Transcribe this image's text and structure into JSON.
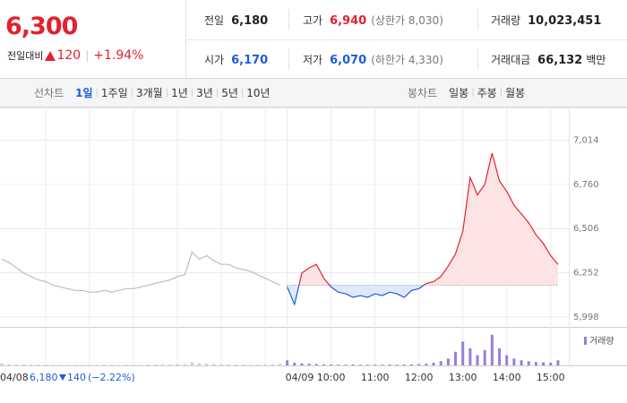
{
  "header": {
    "price": "6,300",
    "change_label": "전일대비",
    "change": "120",
    "change_pct": "+1.94%"
  },
  "stats": [
    [
      {
        "label": "전일",
        "value": "6,180"
      },
      {
        "label": "고가",
        "value": "6,940",
        "color": "#e0232e",
        "extra": "(상한가 8,030)"
      },
      {
        "label": "거래량",
        "value": "10,023,451"
      }
    ],
    [
      {
        "label": "시가",
        "value": "6,170",
        "color": "#1e5dd6"
      },
      {
        "label": "저가",
        "value": "6,070",
        "color": "#1e5dd6",
        "extra": "(하한가 4,330)"
      },
      {
        "label": "거래대금",
        "value": "66,132",
        "unit": "백만"
      }
    ]
  ],
  "tabs": {
    "line_label": "선차트",
    "line_periods": [
      "1일",
      "1주일",
      "3개월",
      "1년",
      "3년",
      "5년",
      "10년"
    ],
    "line_active": 0,
    "candle_label": "봉차트",
    "candle_periods": [
      "일봉",
      "주봉",
      "월봉"
    ]
  },
  "chart_data": {
    "type": "line",
    "categories": [
      "04/08",
      null,
      null,
      null,
      null,
      null,
      null,
      null,
      null,
      null,
      null,
      null,
      null,
      null,
      null,
      null,
      null,
      null,
      null,
      null,
      null,
      null,
      null,
      null,
      null,
      null,
      null,
      null,
      null,
      null,
      null,
      null,
      null,
      null,
      null,
      null,
      null,
      null,
      null,
      "04/09",
      null,
      null,
      null,
      null,
      null,
      "10:00",
      null,
      null,
      null,
      null,
      null,
      "11:00",
      null,
      null,
      null,
      null,
      null,
      "12:00",
      null,
      null,
      null,
      null,
      null,
      "13:00",
      null,
      null,
      null,
      null,
      null,
      "14:00",
      null,
      null,
      null,
      null,
      null,
      "15:00",
      null
    ],
    "series": [
      {
        "color": "#bdbdbd",
        "values": [
          6330,
          6310,
          6280,
          6250,
          6230,
          6210,
          6200,
          6180,
          6170,
          6160,
          6150,
          6150,
          6140,
          6140,
          6150,
          6140,
          6150,
          6160,
          6160,
          6170,
          6180,
          6190,
          6200,
          6210,
          6230,
          6240,
          6370,
          6330,
          6350,
          6320,
          6300,
          6300,
          6280,
          6270,
          6260,
          6240,
          6220,
          6200,
          6180,
          null,
          null,
          null,
          null,
          null,
          null,
          null,
          null,
          null,
          null,
          null,
          null,
          null,
          null,
          null,
          null,
          null,
          null,
          null,
          null,
          null,
          null,
          null,
          null,
          null,
          null,
          null,
          null,
          null,
          null,
          null,
          null,
          null,
          null,
          null,
          null,
          null,
          null
        ]
      },
      {
        "color": "#e0232e",
        "color_below": "#1e5dd6",
        "fill": "#fde4e4",
        "fill_below": "#dfe9fb",
        "values": [
          null,
          null,
          null,
          null,
          null,
          null,
          null,
          null,
          null,
          null,
          null,
          null,
          null,
          null,
          null,
          null,
          null,
          null,
          null,
          null,
          null,
          null,
          null,
          null,
          null,
          null,
          null,
          null,
          null,
          null,
          null,
          null,
          null,
          null,
          null,
          null,
          null,
          null,
          null,
          6170,
          6070,
          6250,
          6280,
          6300,
          6220,
          6170,
          6140,
          6130,
          6110,
          6120,
          6110,
          6130,
          6120,
          6140,
          6130,
          6110,
          6150,
          6160,
          6190,
          6200,
          6230,
          6290,
          6360,
          6490,
          6800,
          6700,
          6760,
          6940,
          6780,
          6720,
          6640,
          6590,
          6540,
          6470,
          6420,
          6350,
          6300
        ]
      }
    ],
    "baseline": 6180,
    "ylim": [
      5940,
      7100
    ],
    "yticks": [
      {
        "value": 5998,
        "label": "5,998"
      },
      {
        "value": 6252,
        "label": "6,252"
      },
      {
        "value": 6506,
        "label": "6,506"
      },
      {
        "value": 6760,
        "label": "6,760"
      },
      {
        "value": 7014,
        "label": "7,014"
      }
    ],
    "grid": true,
    "volume": {
      "name": "거래량",
      "color": "#9a7ed6",
      "prev_color": "#cfcfcf",
      "ylim": [
        0,
        1000000
      ],
      "values": [
        60000,
        40000,
        30000,
        30000,
        25000,
        20000,
        20000,
        20000,
        15000,
        15000,
        15000,
        15000,
        15000,
        15000,
        20000,
        15000,
        15000,
        20000,
        20000,
        20000,
        25000,
        25000,
        30000,
        30000,
        40000,
        40000,
        90000,
        60000,
        50000,
        40000,
        30000,
        30000,
        25000,
        25000,
        20000,
        20000,
        25000,
        30000,
        50000,
        150000,
        80000,
        60000,
        50000,
        40000,
        30000,
        30000,
        20000,
        20000,
        25000,
        20000,
        20000,
        20000,
        20000,
        25000,
        20000,
        25000,
        30000,
        40000,
        50000,
        80000,
        120000,
        200000,
        400000,
        700000,
        500000,
        300000,
        450000,
        900000,
        500000,
        300000,
        200000,
        150000,
        120000,
        100000,
        90000,
        80000,
        150000
      ]
    }
  },
  "prev_day_info": {
    "close": "6,180",
    "change": "140",
    "change_pct": "(−2.22%)"
  }
}
